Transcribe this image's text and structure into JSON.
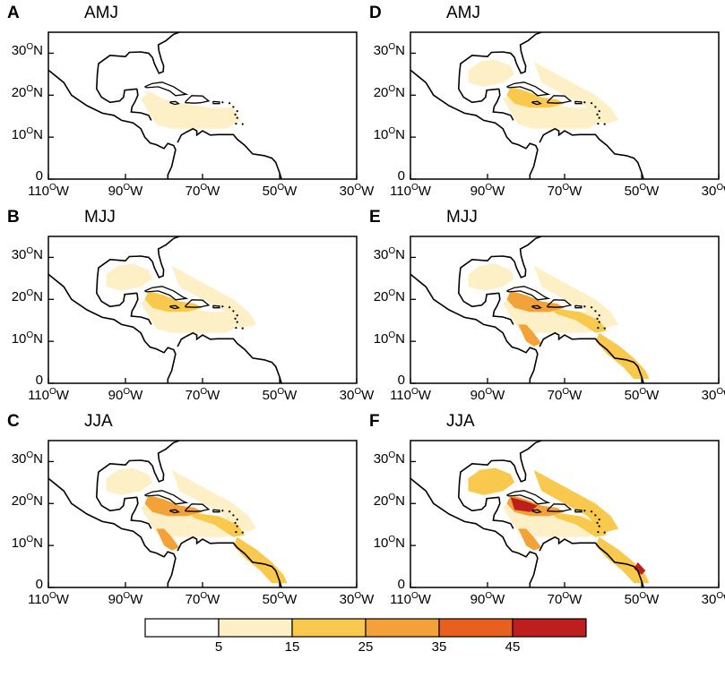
{
  "panels": [
    {
      "letter": "A",
      "title": "AMJ"
    },
    {
      "letter": "B",
      "title": "MJJ"
    },
    {
      "letter": "C",
      "title": "JJA"
    },
    {
      "letter": "D",
      "title": "AMJ"
    },
    {
      "letter": "E",
      "title": "MJJ"
    },
    {
      "letter": "F",
      "title": "JJA"
    }
  ],
  "axes": {
    "lat_labels": [
      "30",
      "20",
      "10",
      "0"
    ],
    "lat_suffix": "N",
    "lon_labels": [
      "110",
      "90",
      "70",
      "50",
      "30"
    ],
    "lon_suffix": "W",
    "degree_mark": "O",
    "lat_range": [
      0,
      35
    ],
    "lon_range": [
      -110,
      -30
    ]
  },
  "colorbar": {
    "tick_labels": [
      "5",
      "15",
      "25",
      "35",
      "45"
    ],
    "colors": [
      "#ffffff",
      "#fdf0c6",
      "#f8c94c",
      "#f3a23a",
      "#e8601f",
      "#bf1e1e"
    ]
  },
  "map_data": {
    "variable_levels": [
      5,
      15,
      25,
      35,
      45
    ],
    "panel_intensity": {
      "A": 1,
      "B": 2,
      "C": 3,
      "D": 2,
      "E": 3,
      "F": 4
    }
  }
}
